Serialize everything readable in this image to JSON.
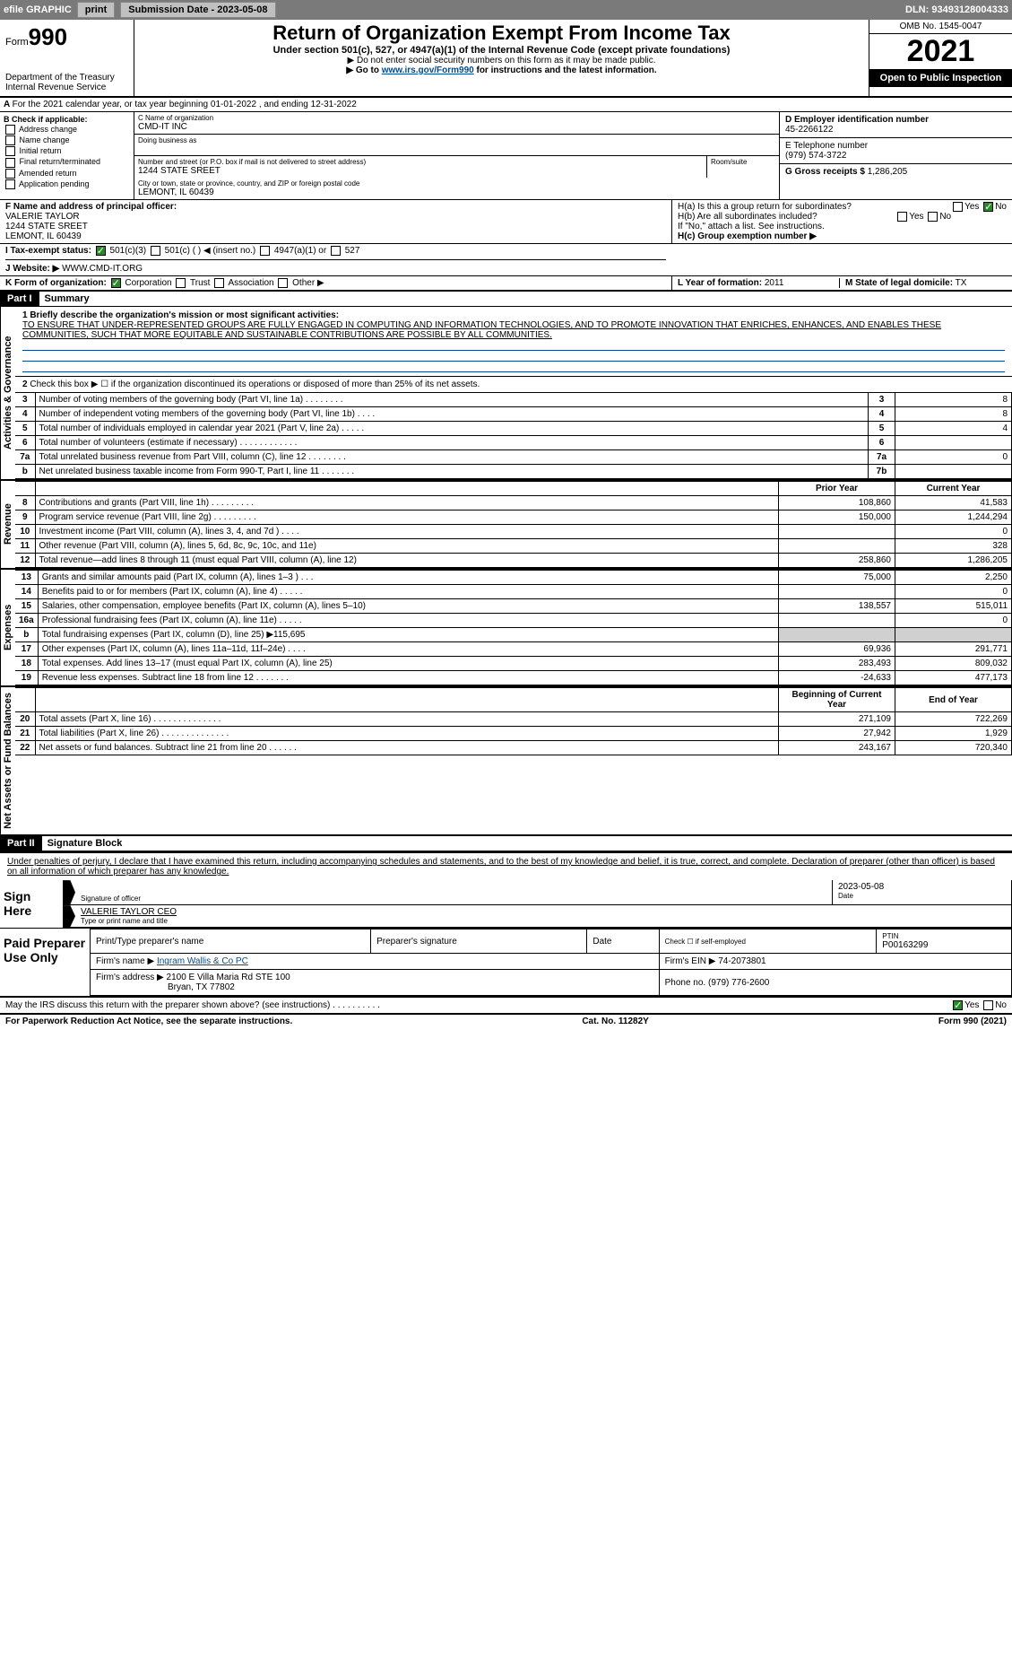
{
  "topbar": {
    "efile": "efile GRAPHIC",
    "print": "print",
    "subdate_lbl": "Submission Date - 2023-05-08",
    "dln": "DLN: 93493128004333"
  },
  "header": {
    "form": "Form",
    "num": "990",
    "dept": "Department of the Treasury",
    "irs": "Internal Revenue Service",
    "title": "Return of Organization Exempt From Income Tax",
    "sub": "Under section 501(c), 527, or 4947(a)(1) of the Internal Revenue Code (except private foundations)",
    "note1": "▶ Do not enter social security numbers on this form as it may be made public.",
    "note2_pre": "▶ Go to ",
    "note2_link": "www.irs.gov/Form990",
    "note2_post": " for instructions and the latest information.",
    "omb": "OMB No. 1545-0047",
    "year": "2021",
    "open": "Open to Public Inspection"
  },
  "lineA": "For the 2021 calendar year, or tax year beginning 01-01-2022   , and ending 12-31-2022",
  "boxB": {
    "title": "B Check if applicable:",
    "items": [
      "Address change",
      "Name change",
      "Initial return",
      "Final return/terminated",
      "Amended return",
      "Application pending"
    ]
  },
  "boxC": {
    "name_lbl": "C Name of organization",
    "name": "CMD-IT INC",
    "dba_lbl": "Doing business as",
    "addr_lbl": "Number and street (or P.O. box if mail is not delivered to street address)",
    "room_lbl": "Room/suite",
    "addr": "1244 STATE SREET",
    "city_lbl": "City or town, state or province, country, and ZIP or foreign postal code",
    "city": "LEMONT, IL  60439"
  },
  "boxD": {
    "lbl": "D Employer identification number",
    "val": "45-2266122"
  },
  "boxE": {
    "lbl": "E Telephone number",
    "val": "(979) 574-3722"
  },
  "boxG": {
    "lbl": "G Gross receipts $",
    "val": "1,286,205"
  },
  "boxF": {
    "lbl": "F Name and address of principal officer:",
    "name": "VALERIE TAYLOR",
    "addr1": "1244 STATE SREET",
    "addr2": "LEMONT, IL  60439"
  },
  "boxH": {
    "a": "H(a)  Is this a group return for subordinates?",
    "b": "H(b)  Are all subordinates included?",
    "b2": "If \"No,\" attach a list. See instructions.",
    "c": "H(c)  Group exemption number ▶"
  },
  "boxI": {
    "lbl": "I  Tax-exempt status:",
    "opts": [
      "501(c)(3)",
      "501(c) (  ) ◀ (insert no.)",
      "4947(a)(1) or",
      "527"
    ]
  },
  "boxJ": {
    "lbl": "J  Website: ▶",
    "val": "WWW.CMD-IT.ORG"
  },
  "boxK": {
    "lbl": "K Form of organization:",
    "opts": [
      "Corporation",
      "Trust",
      "Association",
      "Other ▶"
    ]
  },
  "boxL": {
    "lbl": "L Year of formation:",
    "val": "2011"
  },
  "boxM": {
    "lbl": "M State of legal domicile:",
    "val": "TX"
  },
  "part1": {
    "hdr": "Part I",
    "title": "Summary",
    "mission_lbl": "1  Briefly describe the organization's mission or most significant activities:",
    "mission": "TO ENSURE THAT UNDER-REPRESENTED GROUPS ARE FULLY ENGAGED IN COMPUTING AND INFORMATION TECHNOLOGIES, AND TO PROMOTE INNOVATION THAT ENRICHES, ENHANCES, AND ENABLES THESE COMMUNITIES, SUCH THAT MORE EQUITABLE AND SUSTAINABLE CONTRIBUTIONS ARE POSSIBLE BY ALL COMMUNITIES.",
    "line2": "Check this box ▶ ☐ if the organization discontinued its operations or disposed of more than 25% of its net assets.",
    "vlabels": {
      "gov": "Activities & Governance",
      "rev": "Revenue",
      "exp": "Expenses",
      "net": "Net Assets or Fund Balances"
    },
    "gov_rows": [
      {
        "n": "3",
        "d": "Number of voting members of the governing body (Part VI, line 1a)  .    .    .    .    .    .    .    .",
        "k": "3",
        "v": "8"
      },
      {
        "n": "4",
        "d": "Number of independent voting members of the governing body (Part VI, line 1b)   .    .    .    .",
        "k": "4",
        "v": "8"
      },
      {
        "n": "5",
        "d": "Total number of individuals employed in calendar year 2021 (Part V, line 2a)  .    .    .    .    .",
        "k": "5",
        "v": "4"
      },
      {
        "n": "6",
        "d": "Total number of volunteers (estimate if necessary)   .    .    .    .    .    .    .    .    .    .    .    .",
        "k": "6",
        "v": ""
      },
      {
        "n": "7a",
        "d": "Total unrelated business revenue from Part VIII, column (C), line 12  .    .    .    .    .    .    .    .",
        "k": "7a",
        "v": "0"
      },
      {
        "n": "b",
        "d": "Net unrelated business taxable income from Form 990-T, Part I, line 11   .    .    .    .    .    .    .",
        "k": "7b",
        "v": ""
      }
    ],
    "py": "Prior Year",
    "cy": "Current Year",
    "rev_rows": [
      {
        "n": "8",
        "d": "Contributions and grants (Part VIII, line 1h)   .    .    .    .    .    .    .    .    .",
        "v1": "108,860",
        "v2": "41,583"
      },
      {
        "n": "9",
        "d": "Program service revenue (Part VIII, line 2g)  .    .    .    .    .    .    .    .    .",
        "v1": "150,000",
        "v2": "1,244,294"
      },
      {
        "n": "10",
        "d": "Investment income (Part VIII, column (A), lines 3, 4, and 7d )   .    .    .    .",
        "v1": "",
        "v2": "0"
      },
      {
        "n": "11",
        "d": "Other revenue (Part VIII, column (A), lines 5, 6d, 8c, 9c, 10c, and 11e)",
        "v1": "",
        "v2": "328"
      },
      {
        "n": "12",
        "d": "Total revenue—add lines 8 through 11 (must equal Part VIII, column (A), line 12)",
        "v1": "258,860",
        "v2": "1,286,205"
      }
    ],
    "exp_rows": [
      {
        "n": "13",
        "d": "Grants and similar amounts paid (Part IX, column (A), lines 1–3 )  .    .    .",
        "v1": "75,000",
        "v2": "2,250"
      },
      {
        "n": "14",
        "d": "Benefits paid to or for members (Part IX, column (A), line 4)  .    .    .    .    .",
        "v1": "",
        "v2": "0"
      },
      {
        "n": "15",
        "d": "Salaries, other compensation, employee benefits (Part IX, column (A), lines 5–10)",
        "v1": "138,557",
        "v2": "515,011"
      },
      {
        "n": "16a",
        "d": "Professional fundraising fees (Part IX, column (A), line 11e)  .    .    .    .    .",
        "v1": "",
        "v2": "0"
      },
      {
        "n": "b",
        "d": "Total fundraising expenses (Part IX, column (D), line 25) ▶115,695",
        "v1": "shade",
        "v2": "shade"
      },
      {
        "n": "17",
        "d": "Other expenses (Part IX, column (A), lines 11a–11d, 11f–24e)   .    .    .    .",
        "v1": "69,936",
        "v2": "291,771"
      },
      {
        "n": "18",
        "d": "Total expenses. Add lines 13–17 (must equal Part IX, column (A), line 25)",
        "v1": "283,493",
        "v2": "809,032"
      },
      {
        "n": "19",
        "d": "Revenue less expenses. Subtract line 18 from line 12  .    .    .    .    .    .    .",
        "v1": "-24,633",
        "v2": "477,173"
      }
    ],
    "boy": "Beginning of Current Year",
    "eoy": "End of Year",
    "net_rows": [
      {
        "n": "20",
        "d": "Total assets (Part X, line 16)  .    .    .    .    .    .    .    .    .    .    .    .    .    .",
        "v1": "271,109",
        "v2": "722,269"
      },
      {
        "n": "21",
        "d": "Total liabilities (Part X, line 26)  .    .    .    .    .    .    .    .    .    .    .    .    .    .",
        "v1": "27,942",
        "v2": "1,929"
      },
      {
        "n": "22",
        "d": "Net assets or fund balances. Subtract line 21 from line 20   .    .    .    .    .    .",
        "v1": "243,167",
        "v2": "720,340"
      }
    ]
  },
  "part2": {
    "hdr": "Part II",
    "title": "Signature Block",
    "decl": "Under penalties of perjury, I declare that I have examined this return, including accompanying schedules and statements, and to the best of my knowledge and belief, it is true, correct, and complete. Declaration of preparer (other than officer) is based on all information of which preparer has any knowledge.",
    "sign": "Sign Here",
    "sig_officer": "Signature of officer",
    "date": "Date",
    "sig_date": "2023-05-08",
    "officer": "VALERIE TAYLOR CEO",
    "typename": "Type or print name and title",
    "paid": "Paid Preparer Use Only",
    "prep_name_lbl": "Print/Type preparer's name",
    "prep_sig_lbl": "Preparer's signature",
    "date_lbl": "Date",
    "check_lbl": "Check ☐ if self-employed",
    "ptin_lbl": "PTIN",
    "ptin": "P00163299",
    "firm_name_lbl": "Firm's name   ▶",
    "firm_name": "Ingram Wallis & Co PC",
    "firm_ein_lbl": "Firm's EIN ▶",
    "firm_ein": "74-2073801",
    "firm_addr_lbl": "Firm's address ▶",
    "firm_addr": "2100 E Villa Maria Rd STE 100",
    "firm_city": "Bryan, TX  77802",
    "phone_lbl": "Phone no.",
    "phone": "(979) 776-2600",
    "discuss": "May the IRS discuss this return with the preparer shown above? (see instructions)   .    .    .    .    .    .    .    .    .    ."
  },
  "foot": {
    "pra": "For Paperwork Reduction Act Notice, see the separate instructions.",
    "cat": "Cat. No. 11282Y",
    "form": "Form 990 (2021)"
  }
}
